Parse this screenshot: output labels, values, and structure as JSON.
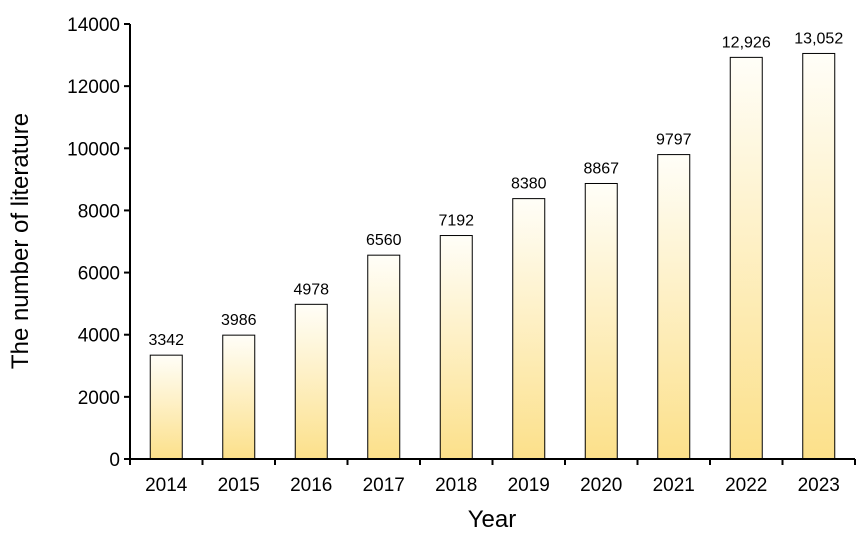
{
  "chart_data": {
    "type": "bar",
    "xlabel": "Year",
    "ylabel": "The number of literature",
    "categories": [
      "2014",
      "2015",
      "2016",
      "2017",
      "2018",
      "2019",
      "2020",
      "2021",
      "2022",
      "2023"
    ],
    "values": [
      3342,
      3986,
      4978,
      6560,
      7192,
      8380,
      8867,
      9797,
      12926,
      13052
    ],
    "data_labels": [
      "3342",
      "3986",
      "4978",
      "6560",
      "7192",
      "8380",
      "8867",
      "9797",
      "12,926",
      "13,052"
    ],
    "ylim": [
      0,
      14000
    ],
    "yticks": [
      "0",
      "2000",
      "4000",
      "6000",
      "8000",
      "10000",
      "12000",
      "14000"
    ],
    "grid": false,
    "bar_gradient": [
      "#fce08a",
      "#fffef8"
    ]
  }
}
